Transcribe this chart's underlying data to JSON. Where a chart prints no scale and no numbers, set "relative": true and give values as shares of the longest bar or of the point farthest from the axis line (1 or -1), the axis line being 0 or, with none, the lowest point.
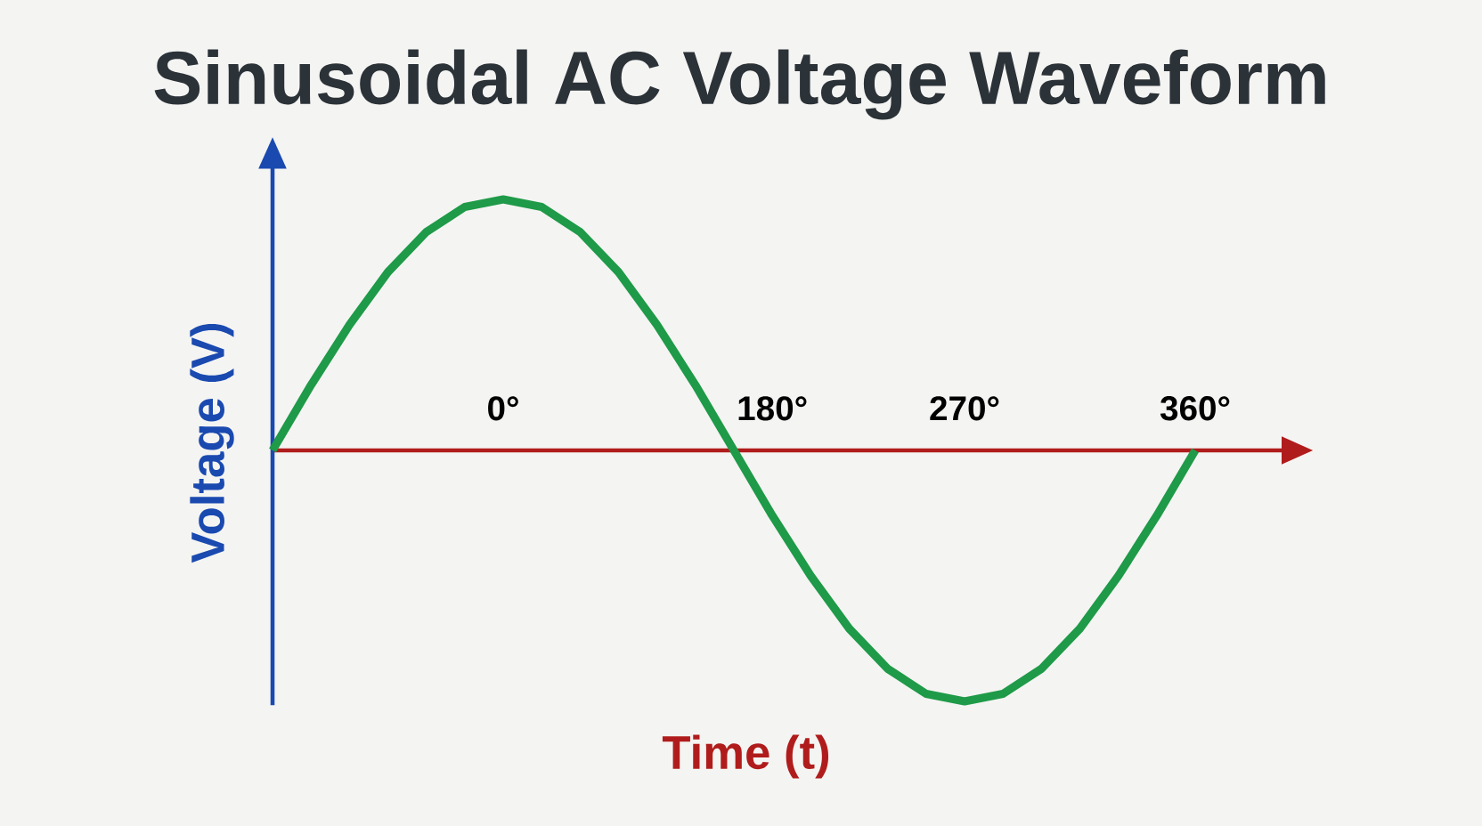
{
  "chart_data": {
    "type": "line",
    "title": "Sinusoidal AC Voltage Waveform",
    "xlabel": "Time (t)",
    "ylabel": "Voltage (V)",
    "relative": true,
    "categories": [
      null,
      null,
      null,
      null,
      null,
      null,
      "0°",
      null,
      null,
      null,
      null,
      null,
      null,
      "180°",
      null,
      null,
      null,
      null,
      "270°",
      null,
      null,
      null,
      null,
      null,
      "360°"
    ],
    "series": [
      {
        "color": "#1e9a48",
        "values": [
          0,
          0.26,
          0.5,
          0.71,
          0.87,
          0.97,
          1,
          0.97,
          0.87,
          0.71,
          0.5,
          0.26,
          0,
          -0.26,
          -0.5,
          -0.71,
          -0.87,
          -0.97,
          -1,
          -0.97,
          -0.87,
          -0.71,
          -0.5,
          -0.26,
          0
        ]
      }
    ],
    "marker": "none",
    "line_style": "solid"
  }
}
